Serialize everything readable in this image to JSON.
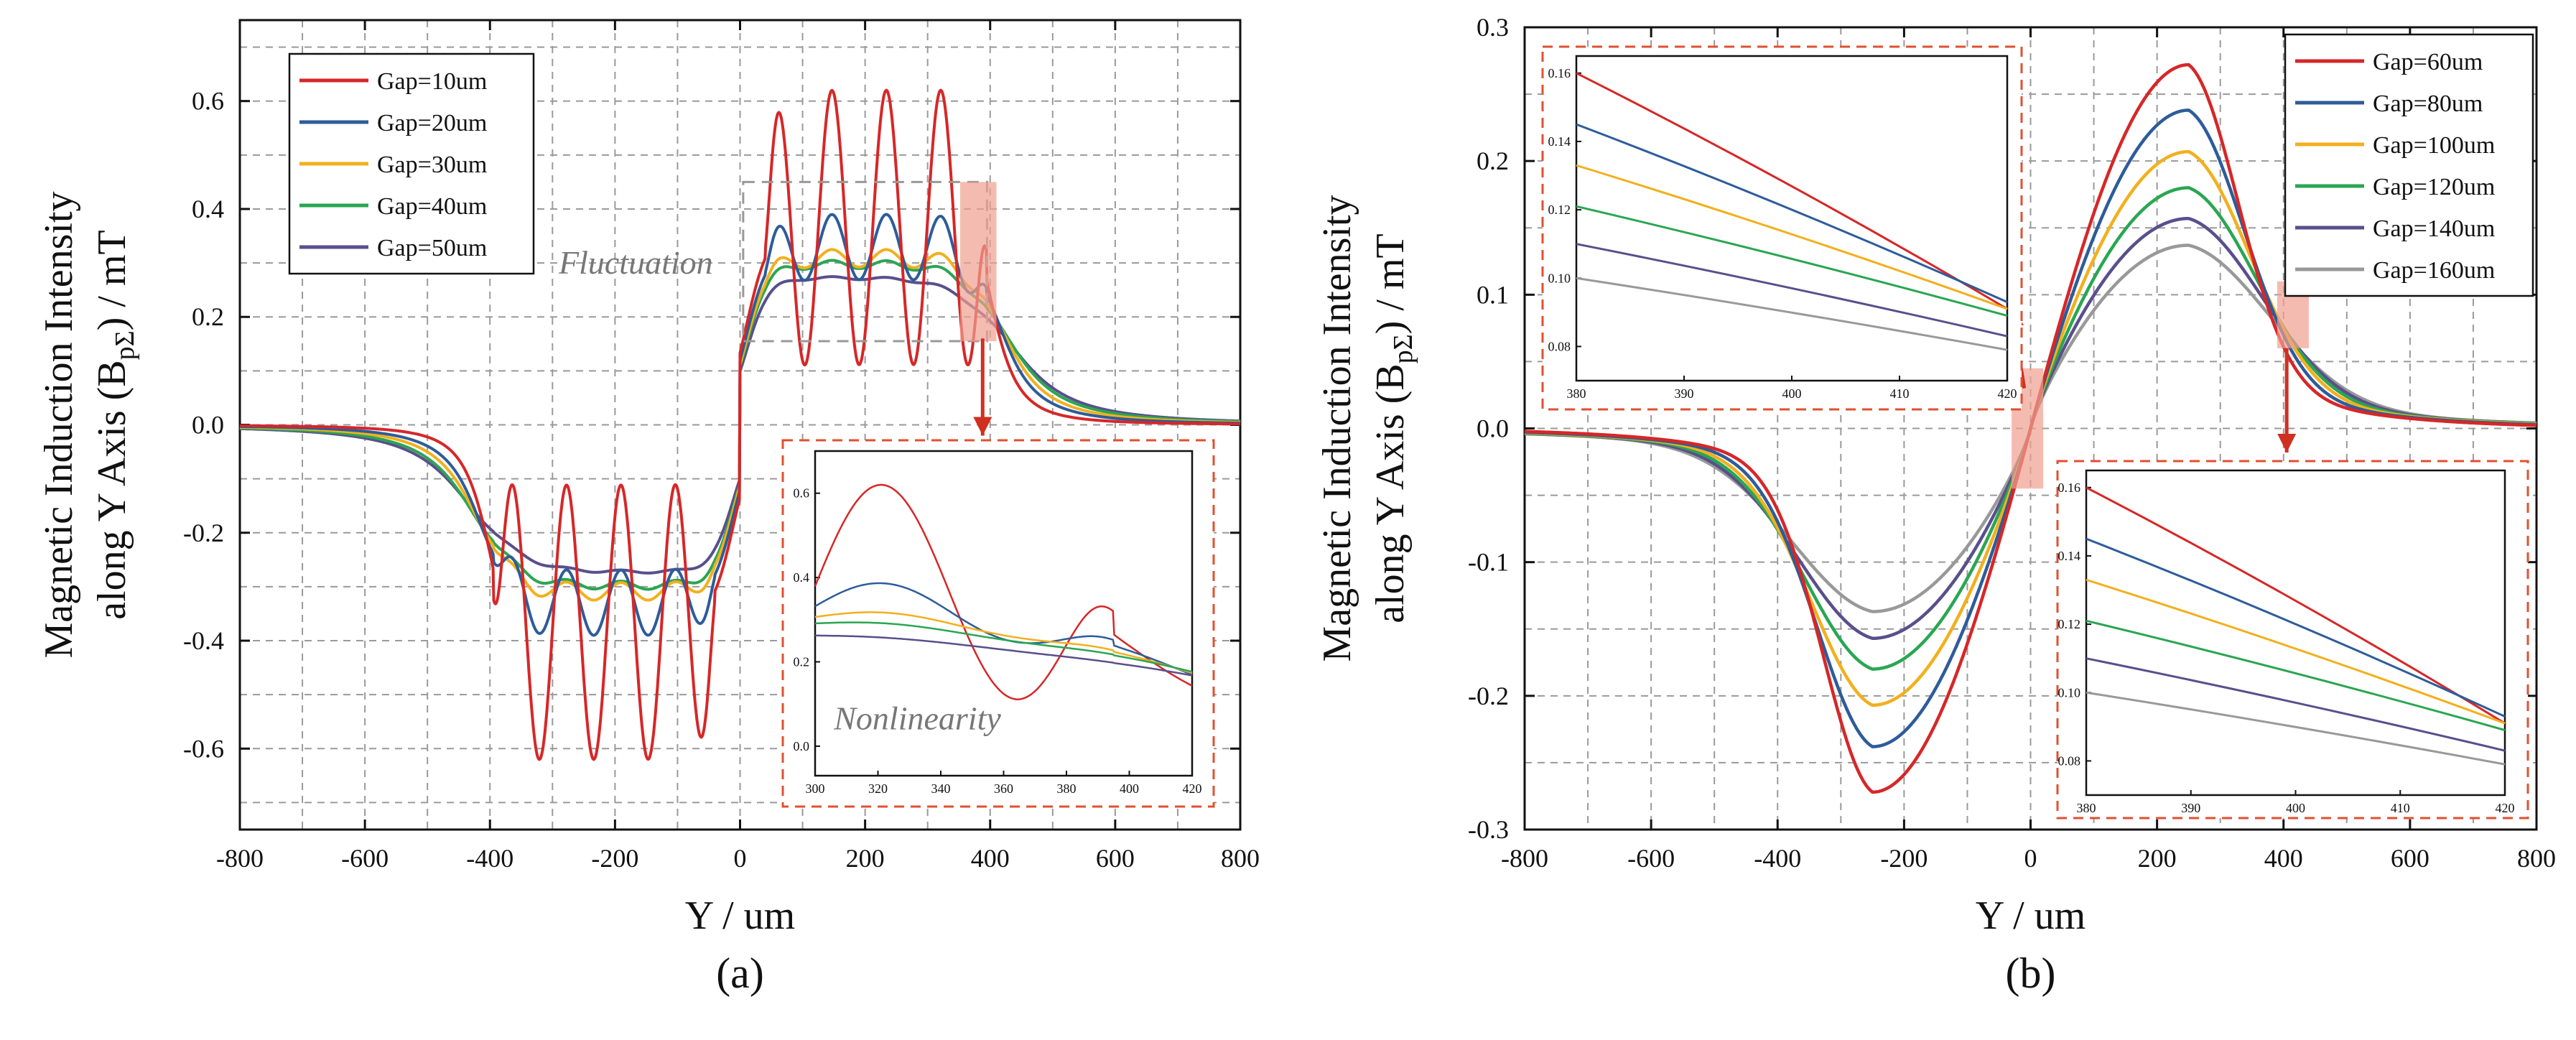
{
  "chart_data": [
    {
      "type": "line",
      "panel_label": "(a)",
      "xlabel": "Y / um",
      "ylabel_line1": "Magnetic Induction Intensity",
      "ylabel_line2_prefix": "along Y Axis (B",
      "ylabel_sub": "pΣ",
      "ylabel_line2_suffix": ") / mT",
      "xlim": [
        -800,
        800
      ],
      "ylim": [
        -0.75,
        0.75
      ],
      "xticks": [
        -800,
        -600,
        -400,
        -200,
        0,
        200,
        400,
        600,
        800
      ],
      "xtick_labels": [
        "-800",
        "-600",
        "-400",
        "-200",
        "0",
        "200",
        "400",
        "600",
        "800"
      ],
      "yticks": [
        -0.6,
        -0.4,
        -0.2,
        0,
        0.2,
        0.4,
        0.6
      ],
      "ytick_labels": [
        "-0.6",
        "-0.4",
        "-0.2",
        "0.0",
        "0.2",
        "0.4",
        "0.6"
      ],
      "grid": true,
      "legend_position": "top-left",
      "series": [
        {
          "name": "Gap=10um",
          "color": "#d62728",
          "amp": 0.62,
          "ripple": 0.82,
          "edge": 9
        },
        {
          "name": "Gap=20um",
          "color": "#2e5c9a",
          "amp": 0.39,
          "ripple": 0.31,
          "edge": 18
        },
        {
          "name": "Gap=30um",
          "color": "#f2b01e",
          "amp": 0.325,
          "ripple": 0.1,
          "edge": 24
        },
        {
          "name": "Gap=40um",
          "color": "#2aa652",
          "amp": 0.305,
          "ripple": 0.05,
          "edge": 30
        },
        {
          "name": "Gap=50um",
          "color": "#5a4f8c",
          "amp": 0.275,
          "ripple": 0.02,
          "edge": 36
        }
      ],
      "annotations": {
        "fluctuation": "Fluctuation",
        "nonlinearity": "Nonlinearity"
      },
      "inset": {
        "xlim": [
          300,
          420
        ],
        "ylim": [
          -0.07,
          0.7
        ],
        "xticks": [
          300,
          320,
          340,
          360,
          380,
          400,
          420
        ],
        "xtick_labels": [
          "300",
          "320",
          "340",
          "360",
          "380",
          "400",
          "420"
        ],
        "yticks": [
          0,
          0.2,
          0.4,
          0.6
        ],
        "ytick_labels": [
          "0.0",
          "0.2",
          "0.4",
          "0.6"
        ]
      }
    },
    {
      "type": "line",
      "panel_label": "(b)",
      "xlabel": "Y / um",
      "ylabel_line1": "Magnetic Induction Intensity",
      "ylabel_line2_prefix": "along Y Axis (B",
      "ylabel_sub": "pΣ",
      "ylabel_line2_suffix": ") / mT",
      "xlim": [
        -800,
        800
      ],
      "ylim": [
        -0.3,
        0.3
      ],
      "xticks": [
        -800,
        -600,
        -400,
        -200,
        0,
        200,
        400,
        600,
        800
      ],
      "xtick_labels": [
        "-800",
        "-600",
        "-400",
        "-200",
        "0",
        "200",
        "400",
        "600",
        "800"
      ],
      "yticks": [
        -0.3,
        -0.2,
        -0.1,
        0,
        0.1,
        0.2,
        0.3
      ],
      "ytick_labels": [
        "-0.3",
        "-0.2",
        "-0.1",
        "0.0",
        "0.1",
        "0.2",
        "0.3"
      ],
      "grid": true,
      "legend_position": "top-right",
      "series": [
        {
          "name": "Gap=60um",
          "color": "#d62728",
          "peak": 0.272,
          "sigma": 105
        },
        {
          "name": "Gap=80um",
          "color": "#2e5c9a",
          "peak": 0.238,
          "sigma": 118
        },
        {
          "name": "Gap=100um",
          "color": "#f2b01e",
          "peak": 0.207,
          "sigma": 131
        },
        {
          "name": "Gap=120um",
          "color": "#2aa652",
          "peak": 0.18,
          "sigma": 144
        },
        {
          "name": "Gap=140um",
          "color": "#5a4f8c",
          "peak": 0.157,
          "sigma": 157
        },
        {
          "name": "Gap=160um",
          "color": "#999999",
          "peak": 0.137,
          "sigma": 170
        }
      ],
      "inset": {
        "xlim": [
          380,
          420
        ],
        "ylim": [
          0.07,
          0.165
        ],
        "xticks": [
          380,
          390,
          400,
          410,
          420
        ],
        "xtick_labels": [
          "380",
          "390",
          "400",
          "410",
          "420"
        ],
        "yticks": [
          0.08,
          0.1,
          0.12,
          0.14,
          0.16
        ],
        "ytick_labels": [
          "0.08",
          "0.10",
          "0.12",
          "0.14",
          "0.16"
        ],
        "lines": [
          {
            "name": "Gap=60um",
            "y380": 0.16,
            "y420": 0.091
          },
          {
            "name": "Gap=80um",
            "y380": 0.145,
            "y420": 0.093
          },
          {
            "name": "Gap=100um",
            "y380": 0.133,
            "y420": 0.091
          },
          {
            "name": "Gap=120um",
            "y380": 0.121,
            "y420": 0.089
          },
          {
            "name": "Gap=140um",
            "y380": 0.11,
            "y420": 0.083
          },
          {
            "name": "Gap=160um",
            "y380": 0.1,
            "y420": 0.079
          }
        ]
      }
    }
  ]
}
